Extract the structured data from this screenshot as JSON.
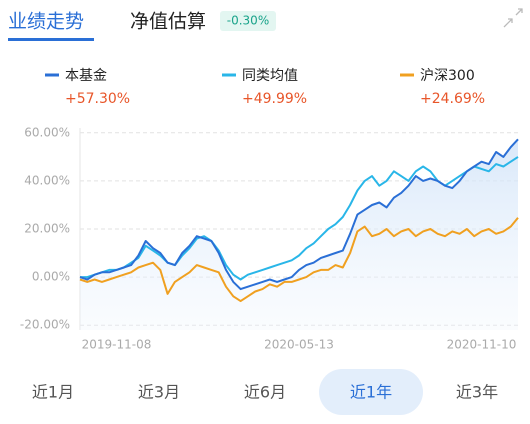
{
  "tabs": [
    "业绩走势",
    "净值估算"
  ],
  "estimate": "-0.30%",
  "periods": [
    "近1月",
    "近3月",
    "近6月",
    "近1年",
    "近3年"
  ],
  "selected_period": 3,
  "chart_data": {
    "type": "line",
    "categories": [
      null,
      null,
      null,
      null,
      null,
      "2019-11-08",
      null,
      null,
      null,
      null,
      null,
      null,
      null,
      null,
      null,
      null,
      null,
      null,
      null,
      null,
      null,
      null,
      null,
      null,
      null,
      null,
      null,
      null,
      null,
      null,
      "2020-05-13",
      null,
      null,
      null,
      null,
      null,
      null,
      null,
      null,
      null,
      null,
      null,
      null,
      null,
      null,
      null,
      null,
      null,
      null,
      null,
      null,
      null,
      null,
      null,
      null,
      "2020-11-10",
      null,
      null,
      null,
      null,
      null
    ],
    "series": [
      {
        "name": "本基金",
        "color": "#2a6fd6",
        "last_label": "+57.30%",
        "values": [
          0,
          -1,
          1,
          2,
          2,
          3,
          4,
          5,
          9,
          15,
          12,
          10,
          6,
          5,
          10,
          13,
          17,
          16,
          15,
          10,
          3,
          -2,
          -5,
          -4,
          -3,
          -2,
          -1,
          -2,
          -1,
          0,
          3,
          5,
          6,
          8,
          9,
          10,
          11,
          18,
          26,
          28,
          30,
          31,
          29,
          33,
          35,
          38,
          42,
          40,
          41,
          40,
          38,
          37,
          40,
          44,
          46,
          48,
          47,
          52,
          50,
          54,
          57.3
        ]
      },
      {
        "name": "同类均值",
        "color": "#29b6e8",
        "last_label": "+49.99%",
        "values": [
          0,
          0,
          1,
          2,
          3,
          3,
          4,
          6,
          8,
          13,
          11,
          9,
          6,
          5,
          9,
          12,
          16,
          17,
          15,
          11,
          5,
          1,
          -1,
          1,
          2,
          3,
          4,
          5,
          6,
          7,
          9,
          12,
          14,
          17,
          20,
          22,
          25,
          30,
          36,
          40,
          42,
          38,
          40,
          44,
          42,
          40,
          44,
          46,
          44,
          40,
          38,
          40,
          42,
          44,
          46,
          45,
          44,
          47,
          46,
          48,
          49.99
        ]
      },
      {
        "name": "沪深300",
        "color": "#f0a020",
        "last_label": "+24.69%",
        "values": [
          -1,
          -2,
          -1,
          -2,
          -1,
          0,
          1,
          2,
          4,
          5,
          6,
          3,
          -7,
          -2,
          0,
          2,
          5,
          4,
          3,
          2,
          -4,
          -8,
          -10,
          -8,
          -6,
          -5,
          -3,
          -4,
          -2,
          -2,
          -1,
          0,
          2,
          3,
          3,
          5,
          4,
          10,
          19,
          21,
          17,
          18,
          20,
          17,
          19,
          20,
          17,
          19,
          20,
          18,
          17,
          19,
          18,
          20,
          17,
          19,
          20,
          18,
          19,
          21,
          24.69
        ]
      }
    ],
    "ylim": [
      -22,
      62
    ],
    "yticks": [
      {
        "value": -20,
        "label": "-20.00%"
      },
      {
        "value": 0,
        "label": "0.00%"
      },
      {
        "value": 20,
        "label": "20.00%"
      },
      {
        "value": 40,
        "label": "40.00%"
      },
      {
        "value": 60,
        "label": "60.00%"
      }
    ],
    "grid": true,
    "area_under_first": true
  }
}
